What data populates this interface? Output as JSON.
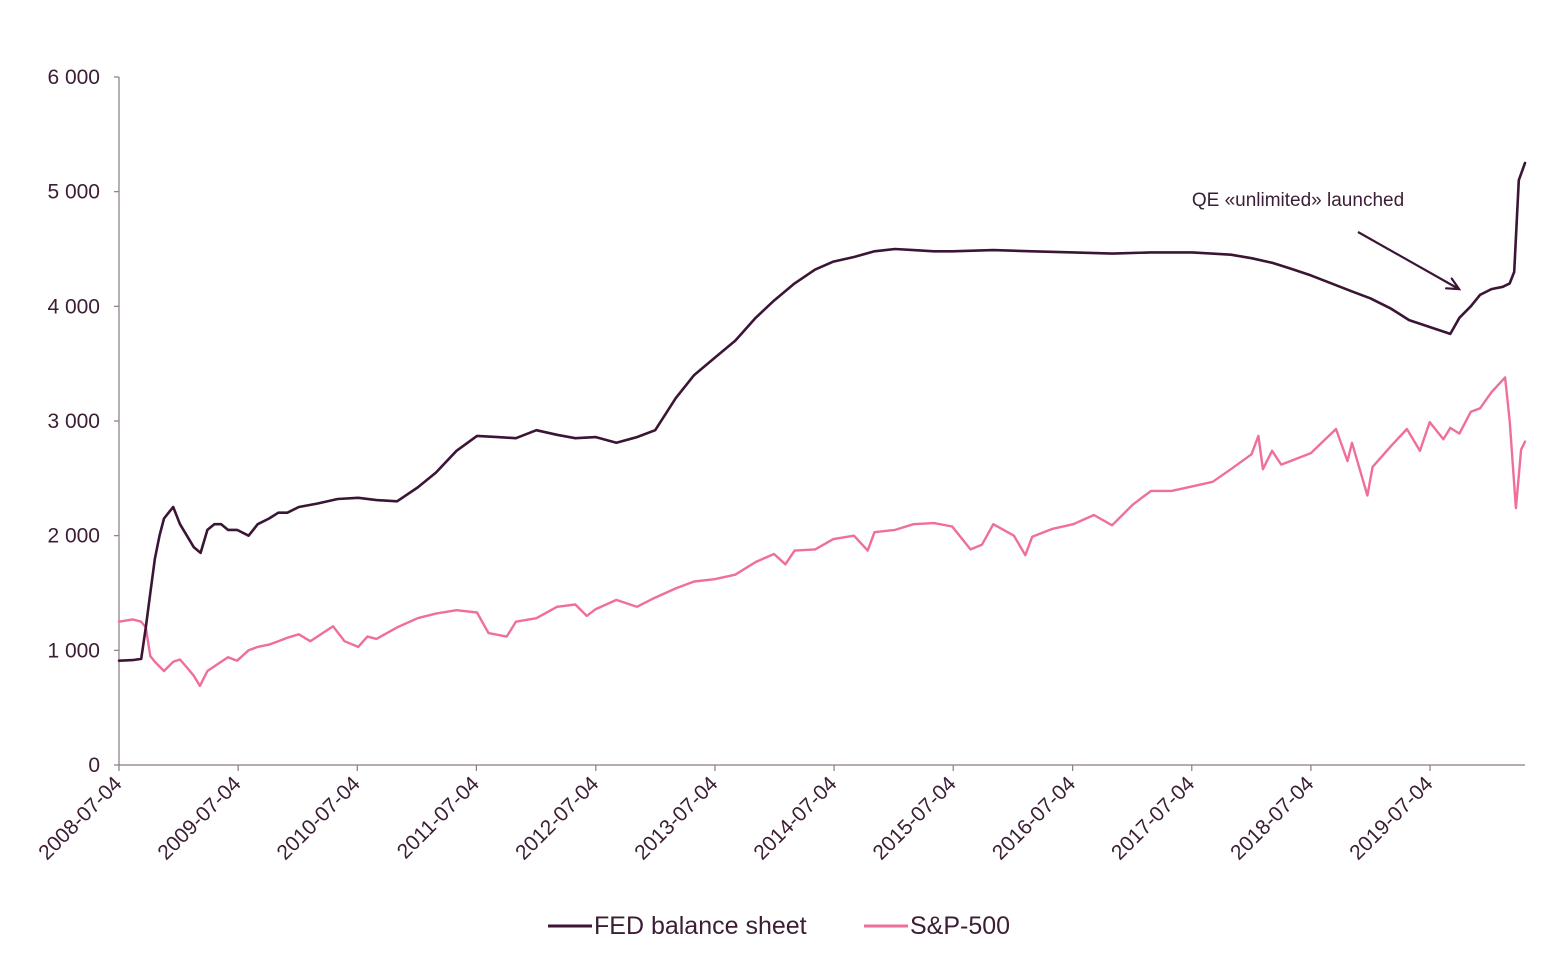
{
  "chart_data": {
    "type": "line",
    "x_range": [
      "2008-07-04",
      "2020-04-20"
    ],
    "ylim": [
      0,
      6000
    ],
    "y_ticks": [
      {
        "value": 0,
        "label": "0"
      },
      {
        "value": 1000,
        "label": "1 000"
      },
      {
        "value": 2000,
        "label": "2 000"
      },
      {
        "value": 3000,
        "label": "3 000"
      },
      {
        "value": 4000,
        "label": "4 000"
      },
      {
        "value": 5000,
        "label": "5 000"
      },
      {
        "value": 6000,
        "label": "6 000"
      }
    ],
    "x_ticks": [
      "2008-07-04",
      "2009-07-04",
      "2010-07-04",
      "2011-07-04",
      "2012-07-04",
      "2013-07-04",
      "2014-07-04",
      "2015-07-04",
      "2016-07-04",
      "2017-07-04",
      "2018-07-04",
      "2019-07-04"
    ],
    "grid": false,
    "legend_position": "bottom",
    "series": [
      {
        "name": "FED balance sheet",
        "color": "#3b1535",
        "points": [
          [
            "2008-07-04",
            910
          ],
          [
            "2008-08-15",
            915
          ],
          [
            "2008-09-10",
            925
          ],
          [
            "2008-09-24",
            1200
          ],
          [
            "2008-10-08",
            1500
          ],
          [
            "2008-10-22",
            1800
          ],
          [
            "2008-11-05",
            2000
          ],
          [
            "2008-11-19",
            2150
          ],
          [
            "2008-12-03",
            2200
          ],
          [
            "2008-12-17",
            2250
          ],
          [
            "2009-01-07",
            2100
          ],
          [
            "2009-01-28",
            2000
          ],
          [
            "2009-02-18",
            1900
          ],
          [
            "2009-03-11",
            1850
          ],
          [
            "2009-04-01",
            2050
          ],
          [
            "2009-04-22",
            2100
          ],
          [
            "2009-05-13",
            2100
          ],
          [
            "2009-06-03",
            2050
          ],
          [
            "2009-07-01",
            2050
          ],
          [
            "2009-08-05",
            2000
          ],
          [
            "2009-09-02",
            2100
          ],
          [
            "2009-10-07",
            2150
          ],
          [
            "2009-11-04",
            2200
          ],
          [
            "2009-12-02",
            2200
          ],
          [
            "2010-01-06",
            2250
          ],
          [
            "2010-03-03",
            2280
          ],
          [
            "2010-05-05",
            2320
          ],
          [
            "2010-07-07",
            2330
          ],
          [
            "2010-09-01",
            2310
          ],
          [
            "2010-11-03",
            2300
          ],
          [
            "2011-01-05",
            2420
          ],
          [
            "2011-03-02",
            2550
          ],
          [
            "2011-05-04",
            2740
          ],
          [
            "2011-07-06",
            2870
          ],
          [
            "2011-09-07",
            2860
          ],
          [
            "2011-11-02",
            2850
          ],
          [
            "2012-01-04",
            2920
          ],
          [
            "2012-03-07",
            2880
          ],
          [
            "2012-05-02",
            2850
          ],
          [
            "2012-07-04",
            2860
          ],
          [
            "2012-09-05",
            2810
          ],
          [
            "2012-11-07",
            2860
          ],
          [
            "2013-01-02",
            2920
          ],
          [
            "2013-03-06",
            3200
          ],
          [
            "2013-05-01",
            3400
          ],
          [
            "2013-07-03",
            3550
          ],
          [
            "2013-09-04",
            3700
          ],
          [
            "2013-11-06",
            3900
          ],
          [
            "2014-01-01",
            4050
          ],
          [
            "2014-03-05",
            4200
          ],
          [
            "2014-05-07",
            4320
          ],
          [
            "2014-07-02",
            4390
          ],
          [
            "2014-09-03",
            4430
          ],
          [
            "2014-11-05",
            4480
          ],
          [
            "2015-01-07",
            4500
          ],
          [
            "2015-03-04",
            4490
          ],
          [
            "2015-05-06",
            4480
          ],
          [
            "2015-07-01",
            4480
          ],
          [
            "2015-11-04",
            4490
          ],
          [
            "2016-03-02",
            4480
          ],
          [
            "2016-07-06",
            4470
          ],
          [
            "2016-11-02",
            4460
          ],
          [
            "2017-03-01",
            4470
          ],
          [
            "2017-07-05",
            4470
          ],
          [
            "2017-11-01",
            4450
          ],
          [
            "2018-01-03",
            4420
          ],
          [
            "2018-03-07",
            4380
          ],
          [
            "2018-05-02",
            4330
          ],
          [
            "2018-07-04",
            4270
          ],
          [
            "2018-09-05",
            4200
          ],
          [
            "2018-11-07",
            4130
          ],
          [
            "2019-01-02",
            4070
          ],
          [
            "2019-03-06",
            3980
          ],
          [
            "2019-05-01",
            3880
          ],
          [
            "2019-07-03",
            3820
          ],
          [
            "2019-09-04",
            3760
          ],
          [
            "2019-10-02",
            3900
          ],
          [
            "2019-11-06",
            4000
          ],
          [
            "2019-12-04",
            4100
          ],
          [
            "2020-01-08",
            4150
          ],
          [
            "2020-02-12",
            4170
          ],
          [
            "2020-03-04",
            4200
          ],
          [
            "2020-03-18",
            4300
          ],
          [
            "2020-04-01",
            5100
          ],
          [
            "2020-04-20",
            5250
          ]
        ]
      },
      {
        "name": "S&P-500",
        "color": "#ef6f9a",
        "points": [
          [
            "2008-07-04",
            1250
          ],
          [
            "2008-08-15",
            1270
          ],
          [
            "2008-09-10",
            1250
          ],
          [
            "2008-09-24",
            1200
          ],
          [
            "2008-10-08",
            950
          ],
          [
            "2008-10-22",
            900
          ],
          [
            "2008-11-19",
            820
          ],
          [
            "2008-12-17",
            900
          ],
          [
            "2009-01-07",
            920
          ],
          [
            "2009-01-28",
            850
          ],
          [
            "2009-02-18",
            780
          ],
          [
            "2009-03-09",
            690
          ],
          [
            "2009-04-01",
            820
          ],
          [
            "2009-05-13",
            900
          ],
          [
            "2009-06-03",
            940
          ],
          [
            "2009-07-01",
            910
          ],
          [
            "2009-08-05",
            1000
          ],
          [
            "2009-09-02",
            1030
          ],
          [
            "2009-10-07",
            1050
          ],
          [
            "2009-11-04",
            1080
          ],
          [
            "2009-12-02",
            1110
          ],
          [
            "2010-01-06",
            1140
          ],
          [
            "2010-02-10",
            1080
          ],
          [
            "2010-04-21",
            1210
          ],
          [
            "2010-05-26",
            1080
          ],
          [
            "2010-07-07",
            1030
          ],
          [
            "2010-08-04",
            1120
          ],
          [
            "2010-09-01",
            1100
          ],
          [
            "2010-11-03",
            1200
          ],
          [
            "2011-01-05",
            1280
          ],
          [
            "2011-03-02",
            1320
          ],
          [
            "2011-05-04",
            1350
          ],
          [
            "2011-07-06",
            1330
          ],
          [
            "2011-08-10",
            1150
          ],
          [
            "2011-10-05",
            1120
          ],
          [
            "2011-11-02",
            1250
          ],
          [
            "2012-01-04",
            1280
          ],
          [
            "2012-03-07",
            1380
          ],
          [
            "2012-05-02",
            1400
          ],
          [
            "2012-06-06",
            1300
          ],
          [
            "2012-07-04",
            1360
          ],
          [
            "2012-09-05",
            1440
          ],
          [
            "2012-11-07",
            1380
          ],
          [
            "2013-01-02",
            1460
          ],
          [
            "2013-03-06",
            1540
          ],
          [
            "2013-05-01",
            1600
          ],
          [
            "2013-07-03",
            1620
          ],
          [
            "2013-09-04",
            1660
          ],
          [
            "2013-11-06",
            1770
          ],
          [
            "2014-01-01",
            1840
          ],
          [
            "2014-02-05",
            1750
          ],
          [
            "2014-03-05",
            1870
          ],
          [
            "2014-05-07",
            1880
          ],
          [
            "2014-07-02",
            1970
          ],
          [
            "2014-09-03",
            2000
          ],
          [
            "2014-10-15",
            1870
          ],
          [
            "2014-11-05",
            2030
          ],
          [
            "2015-01-07",
            2050
          ],
          [
            "2015-03-04",
            2100
          ],
          [
            "2015-05-06",
            2110
          ],
          [
            "2015-07-01",
            2080
          ],
          [
            "2015-08-26",
            1880
          ],
          [
            "2015-09-30",
            1920
          ],
          [
            "2015-11-04",
            2100
          ],
          [
            "2016-01-06",
            2000
          ],
          [
            "2016-02-10",
            1830
          ],
          [
            "2016-03-02",
            1990
          ],
          [
            "2016-05-04",
            2060
          ],
          [
            "2016-07-06",
            2100
          ],
          [
            "2016-09-07",
            2180
          ],
          [
            "2016-11-02",
            2090
          ],
          [
            "2017-01-04",
            2270
          ],
          [
            "2017-03-01",
            2390
          ],
          [
            "2017-05-03",
            2390
          ],
          [
            "2017-07-05",
            2430
          ],
          [
            "2017-09-06",
            2470
          ],
          [
            "2017-11-01",
            2580
          ],
          [
            "2018-01-03",
            2710
          ],
          [
            "2018-01-24",
            2870
          ],
          [
            "2018-02-07",
            2580
          ],
          [
            "2018-03-07",
            2740
          ],
          [
            "2018-04-04",
            2620
          ],
          [
            "2018-05-02",
            2650
          ],
          [
            "2018-07-04",
            2720
          ],
          [
            "2018-09-19",
            2930
          ],
          [
            "2018-10-24",
            2650
          ],
          [
            "2018-11-07",
            2810
          ],
          [
            "2018-12-24",
            2350
          ],
          [
            "2019-01-09",
            2600
          ],
          [
            "2019-03-06",
            2780
          ],
          [
            "2019-04-24",
            2930
          ],
          [
            "2019-06-03",
            2740
          ],
          [
            "2019-07-03",
            2990
          ],
          [
            "2019-08-14",
            2840
          ],
          [
            "2019-09-04",
            2940
          ],
          [
            "2019-10-02",
            2890
          ],
          [
            "2019-11-06",
            3080
          ],
          [
            "2019-12-04",
            3110
          ],
          [
            "2020-01-08",
            3250
          ],
          [
            "2020-02-19",
            3380
          ],
          [
            "2020-03-04",
            3000
          ],
          [
            "2020-03-23",
            2240
          ],
          [
            "2020-04-08",
            2750
          ],
          [
            "2020-04-20",
            2820
          ]
        ]
      }
    ],
    "legend": [
      "FED balance sheet",
      "S&P-500"
    ],
    "annotations": [
      {
        "text": "QE «unlimited» launched",
        "target_date": "2019-10-01",
        "target_value": 4150
      }
    ]
  }
}
